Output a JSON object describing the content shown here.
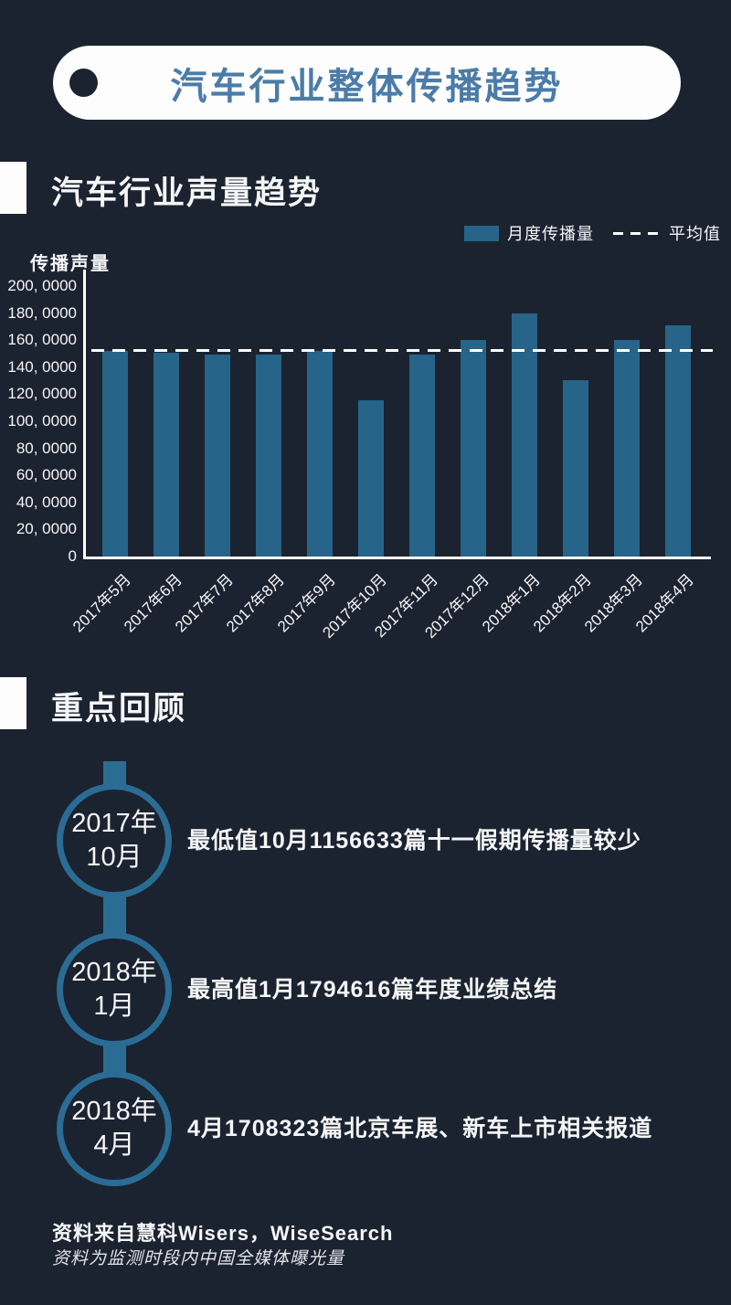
{
  "colors": {
    "background": "#1b2330",
    "bar_blue": "#27648a",
    "timeline_blue": "#2b6c94",
    "header_title_blue": "#4b7ca8",
    "text_white": "#f5f6f7"
  },
  "header": {
    "title": "汽车行业整体传播趋势"
  },
  "volume_section": {
    "title": "汽车行业声量趋势"
  },
  "chart_data": {
    "type": "bar",
    "title": "汽车行业声量趋势",
    "ylabel": "传播声量",
    "xlabel": "",
    "categories": [
      "2017年5月",
      "2017年6月",
      "2017年7月",
      "2017年8月",
      "2017年9月",
      "2017年10月",
      "2017年11月",
      "2017年12月",
      "2018年1月",
      "2018年2月",
      "2018年3月",
      "2018年4月"
    ],
    "series": [
      {
        "name": "月度传播量",
        "values": [
          1520000,
          1508000,
          1492000,
          1492000,
          1520000,
          1156633,
          1490000,
          1600000,
          1794616,
          1305000,
          1600000,
          1708323
        ]
      }
    ],
    "average_line": {
      "label": "平均值",
      "value": 1525000
    },
    "ylim": [
      0,
      2000000
    ],
    "y_tick_labels": [
      "200, 0000",
      "180, 0000",
      "160, 0000",
      "140, 0000",
      "120, 0000",
      "100, 0000",
      "80, 0000",
      "60, 0000",
      "40, 0000",
      "20, 0000",
      "0"
    ],
    "grid": false,
    "legend_position": "top-right",
    "bar_color": "#27648a"
  },
  "review_section": {
    "title": "重点回顾",
    "items": [
      {
        "period_line1": "2017年",
        "period_line2": "10月",
        "text": "最低值10月1156633篇十一假期传播量较少"
      },
      {
        "period_line1": "2018年",
        "period_line2": "1月",
        "text": "最高值1月1794616篇年度业绩总结"
      },
      {
        "period_line1": "2018年",
        "period_line2": "4月",
        "text": "4月1708323篇北京车展、新车上市相关报道"
      }
    ]
  },
  "footer": {
    "source": "资料来自慧科Wisers，WiseSearch",
    "note": "资料为监测时段内中国全媒体曝光量"
  }
}
